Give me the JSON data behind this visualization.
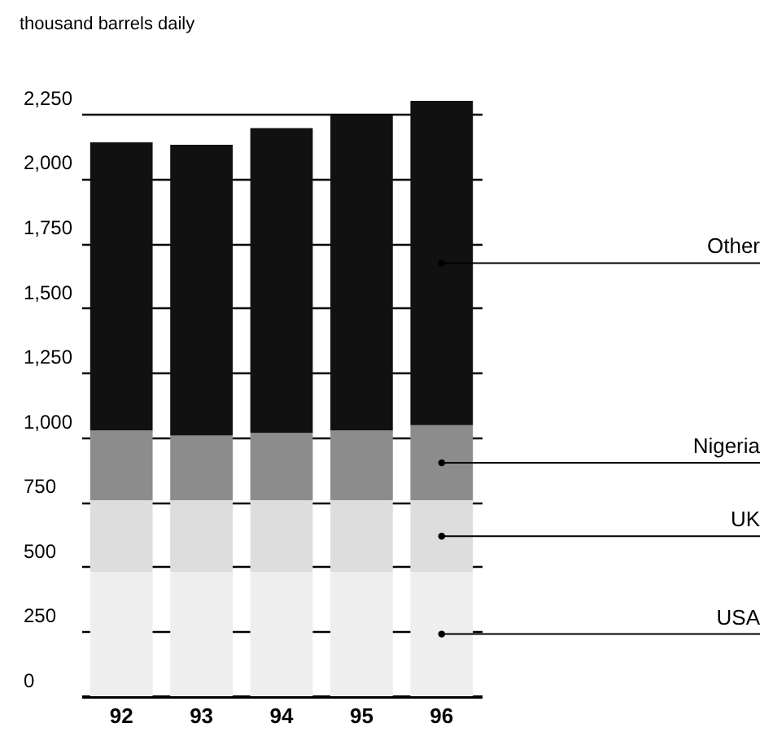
{
  "chart_data": {
    "type": "bar",
    "ylabel": "thousand barrels daily",
    "categories": [
      "92",
      "93",
      "94",
      "95",
      "96"
    ],
    "stacked": true,
    "series": [
      {
        "name": "USA",
        "color": "#eeeeee",
        "values": [
          480,
          480,
          480,
          480,
          480
        ]
      },
      {
        "name": "UK",
        "color": "#dddddd",
        "values": [
          277,
          277,
          277,
          277,
          277
        ]
      },
      {
        "name": "Nigeria",
        "color": "#8c8c8c",
        "values": [
          270,
          250,
          260,
          270,
          290
        ]
      },
      {
        "name": "Other",
        "color": "#111111",
        "values": [
          1113,
          1123,
          1178,
          1218,
          1253
        ]
      }
    ],
    "ylim": [
      0,
      2300
    ],
    "yticks": [
      0,
      250,
      500,
      750,
      {
        "value": 1000,
        "label": "1,000"
      },
      {
        "value": 1250,
        "label": "1,250"
      },
      {
        "value": 1500,
        "label": "1,500"
      },
      {
        "value": 1750,
        "label": "1,750"
      },
      {
        "value": 2000,
        "label": "2,000"
      },
      {
        "value": 2250,
        "label": "2,250"
      }
    ],
    "grid": "y"
  }
}
